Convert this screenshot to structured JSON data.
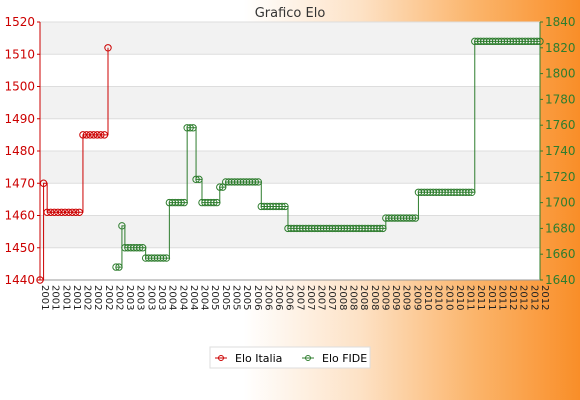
{
  "chart_data": {
    "type": "line",
    "title": "Grafico Elo",
    "y_left": {
      "min": 1440,
      "max": 1520,
      "step": 10,
      "color": "#cc0000"
    },
    "y_right": {
      "min": 1640,
      "max": 1840,
      "step": 20,
      "color": "#2e7d2e"
    },
    "grid": true,
    "legend_position": "bottom-center",
    "x_tick_labels": [
      "2001",
      "2002",
      "2003",
      "2004",
      "2005",
      "2006",
      "2007",
      "2008",
      "2009",
      "2010",
      "2011",
      "2012"
    ],
    "series": [
      {
        "name": "Elo Italia",
        "axis": "left",
        "color": "#cc0000",
        "values": [
          1440,
          1470,
          1461,
          1461,
          1461,
          1461,
          1461,
          1461,
          1461,
          1461,
          1461,
          1461,
          1485,
          1485,
          1485,
          1485,
          1485,
          1485,
          1485,
          1512
        ]
      },
      {
        "name": "Elo FIDE",
        "axis": "right",
        "color": "#2e7d2e",
        "values": [
          1650,
          1650,
          1682,
          1665,
          1665,
          1665,
          1665,
          1665,
          1665,
          1665,
          1657,
          1657,
          1657,
          1657,
          1657,
          1657,
          1657,
          1657,
          1700,
          1700,
          1700,
          1700,
          1700,
          1700,
          1758,
          1758,
          1758,
          1718,
          1718,
          1700,
          1700,
          1700,
          1700,
          1700,
          1700,
          1712,
          1712,
          1716,
          1716,
          1716,
          1716,
          1716,
          1716,
          1716,
          1716,
          1716,
          1716,
          1716,
          1716,
          1697,
          1697,
          1697,
          1697,
          1697,
          1697,
          1697,
          1697,
          1697,
          1680,
          1680,
          1680,
          1680,
          1680,
          1680,
          1680,
          1680,
          1680,
          1680,
          1680,
          1680,
          1680,
          1680,
          1680,
          1680,
          1680,
          1680,
          1680,
          1680,
          1680,
          1680,
          1680,
          1680,
          1680,
          1680,
          1680,
          1680,
          1680,
          1680,
          1680,
          1680,
          1680,
          1688,
          1688,
          1688,
          1688,
          1688,
          1688,
          1688,
          1688,
          1688,
          1688,
          1688,
          1708,
          1708,
          1708,
          1708,
          1708,
          1708,
          1708,
          1708,
          1708,
          1708,
          1708,
          1708,
          1708,
          1708,
          1708,
          1708,
          1708,
          1708,
          1708,
          1825,
          1825,
          1825,
          1825,
          1825,
          1825,
          1825,
          1825,
          1825,
          1825,
          1825,
          1825,
          1825,
          1825,
          1825,
          1825,
          1825,
          1825,
          1825,
          1825,
          1825,
          1825,
          1825
        ]
      }
    ]
  }
}
